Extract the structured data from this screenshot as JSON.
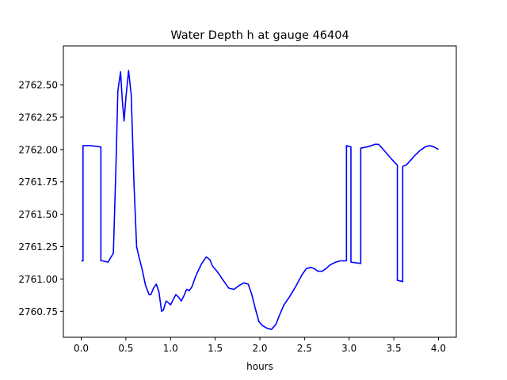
{
  "chart_data": {
    "type": "line",
    "title": "Water Depth h at gauge 46404",
    "xlabel": "hours",
    "ylabel": "",
    "xlim": [
      -0.2,
      4.2
    ],
    "ylim": [
      2760.55,
      2762.8
    ],
    "x_ticks": [
      0.0,
      0.5,
      1.0,
      1.5,
      2.0,
      2.5,
      3.0,
      3.5,
      4.0
    ],
    "x_tick_labels": [
      "0.0",
      "0.5",
      "1.0",
      "1.5",
      "2.0",
      "2.5",
      "3.0",
      "3.5",
      "4.0"
    ],
    "y_ticks": [
      2760.75,
      2761.0,
      2761.25,
      2761.5,
      2761.75,
      2762.0,
      2762.25,
      2762.5
    ],
    "y_tick_labels": [
      "2760.75",
      "2761.00",
      "2761.25",
      "2761.50",
      "2761.75",
      "2762.00",
      "2762.25",
      "2762.50"
    ],
    "grid": false,
    "series": [
      {
        "color": "#0000ff",
        "x": [
          0.0,
          0.02,
          0.02,
          0.1,
          0.22,
          0.22,
          0.24,
          0.3,
          0.36,
          0.39,
          0.41,
          0.44,
          0.46,
          0.48,
          0.5,
          0.53,
          0.56,
          0.59,
          0.62,
          0.65,
          0.68,
          0.72,
          0.76,
          0.78,
          0.81,
          0.84,
          0.87,
          0.9,
          0.92,
          0.95,
          0.97,
          1.0,
          1.03,
          1.06,
          1.09,
          1.12,
          1.15,
          1.18,
          1.21,
          1.24,
          1.27,
          1.3,
          1.35,
          1.4,
          1.44,
          1.47,
          1.52,
          1.58,
          1.65,
          1.71,
          1.77,
          1.82,
          1.87,
          1.91,
          1.95,
          1.99,
          2.03,
          2.08,
          2.13,
          2.18,
          2.22,
          2.27,
          2.33,
          2.4,
          2.47,
          2.52,
          2.57,
          2.61,
          2.65,
          2.7,
          2.74,
          2.79,
          2.85,
          2.9,
          2.95,
          2.97,
          2.97,
          3.02,
          3.02,
          3.13,
          3.13,
          3.2,
          3.25,
          3.29,
          3.33,
          3.37,
          3.42,
          3.47,
          3.51,
          3.54,
          3.54,
          3.6,
          3.6,
          3.64,
          3.68,
          3.73,
          3.79,
          3.85,
          3.9,
          3.95,
          4.0
        ],
        "y": [
          2761.14,
          2761.14,
          2762.03,
          2762.03,
          2762.02,
          2761.14,
          2761.14,
          2761.13,
          2761.2,
          2761.9,
          2762.45,
          2762.6,
          2762.38,
          2762.22,
          2762.4,
          2762.61,
          2762.42,
          2761.75,
          2761.25,
          2761.16,
          2761.08,
          2760.95,
          2760.88,
          2760.88,
          2760.93,
          2760.96,
          2760.9,
          2760.75,
          2760.76,
          2760.83,
          2760.82,
          2760.8,
          2760.84,
          2760.88,
          2760.86,
          2760.83,
          2760.87,
          2760.92,
          2760.91,
          2760.94,
          2761.0,
          2761.05,
          2761.12,
          2761.17,
          2761.15,
          2761.1,
          2761.06,
          2761.0,
          2760.93,
          2760.92,
          2760.95,
          2760.97,
          2760.96,
          2760.88,
          2760.77,
          2760.67,
          2760.64,
          2760.62,
          2760.61,
          2760.65,
          2760.72,
          2760.8,
          2760.86,
          2760.94,
          2761.03,
          2761.08,
          2761.09,
          2761.08,
          2761.06,
          2761.06,
          2761.08,
          2761.11,
          2761.13,
          2761.14,
          2761.14,
          2761.14,
          2762.03,
          2762.02,
          2761.13,
          2761.12,
          2762.01,
          2762.02,
          2762.03,
          2762.04,
          2762.04,
          2762.01,
          2761.97,
          2761.93,
          2761.9,
          2761.88,
          2760.99,
          2760.98,
          2761.87,
          2761.88,
          2761.91,
          2761.95,
          2761.99,
          2762.02,
          2762.03,
          2762.02,
          2762.0
        ]
      }
    ]
  }
}
